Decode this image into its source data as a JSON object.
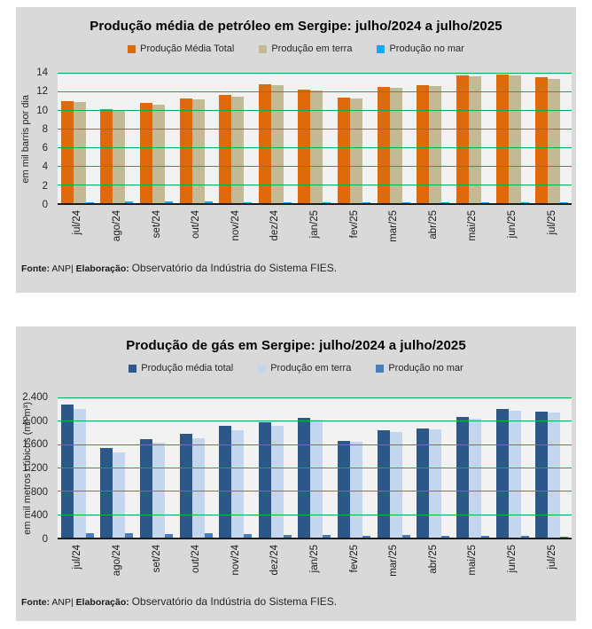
{
  "page": {
    "background": "#ffffff",
    "card_background": "#D9D9D9",
    "plot_background": "#F2F2F2"
  },
  "chart_data": [
    {
      "id": "oil",
      "type": "bar",
      "title": "Produção média de petróleo em Sergipe: julho/2024 a julho/2025",
      "ylabel": "em mil barris por dia",
      "ylim": [
        0,
        14
      ],
      "yticks": [
        14,
        12,
        10,
        8,
        6,
        4,
        2,
        0
      ],
      "ytick_labels": [
        "14",
        "12",
        "10",
        "8",
        "6",
        "4",
        "2",
        "0"
      ],
      "gridline_color": "#00B050",
      "grid": true,
      "legend_position": "top",
      "categories": [
        "jul/24",
        "ago/24",
        "set/24",
        "out/24",
        "nov/24",
        "dez/24",
        "jan/25",
        "fev/25",
        "mar/25",
        "abr/25",
        "mai/25",
        "jun/25",
        "jul/25"
      ],
      "series": [
        {
          "key": "total",
          "name": "Produção Média Total",
          "color": "#DE6A0A",
          "values": [
            10.8,
            10.0,
            10.6,
            11.1,
            11.5,
            12.6,
            12.0,
            11.2,
            12.3,
            12.5,
            13.5,
            13.6,
            13.3
          ]
        },
        {
          "key": "terra",
          "name": "Produção em terra",
          "color": "#C2BA94",
          "values": [
            10.7,
            9.9,
            10.4,
            11.0,
            11.3,
            12.5,
            11.9,
            11.1,
            12.2,
            12.4,
            13.4,
            13.5,
            13.2
          ]
        },
        {
          "key": "mar",
          "name": "Produção no mar",
          "color": "#00B0F0",
          "values": [
            0.1,
            0.2,
            0.2,
            0.2,
            0.1,
            0.05,
            0.05,
            0.05,
            0.05,
            0.1,
            0.05,
            0.05,
            0.05
          ]
        }
      ],
      "source_note": {
        "fonte_label": "Fonte:",
        "fonte_text": "ANP|",
        "elaboracao_label": "Elaboração:",
        "elaboracao_text": "Observatório da Indústria do Sistema FIES."
      }
    },
    {
      "id": "gas",
      "type": "bar",
      "title": "Produção de gás em Sergipe: julho/2024 a julho/2025",
      "ylabel": "em mil metros cúbicos (mil m³)",
      "ylim": [
        0,
        2400
      ],
      "yticks": [
        2400,
        2000,
        1600,
        1200,
        800,
        400,
        0
      ],
      "ytick_labels": [
        "2.400",
        "2.000",
        "1.600",
        "1.200",
        "800",
        "400",
        "0"
      ],
      "gridline_color": "#00B050",
      "grid": true,
      "legend_position": "top",
      "categories": [
        "jul/24",
        "ago/24",
        "set/24",
        "out/24",
        "nov/24",
        "dez/24",
        "jan/25",
        "fev/25",
        "mar/25",
        "abr/25",
        "mai/25",
        "jun/25",
        "jul/25"
      ],
      "series": [
        {
          "key": "total",
          "name": "Produção média total",
          "color": "#2B5789",
          "values": [
            2250,
            1510,
            1670,
            1750,
            1890,
            1950,
            2020,
            1640,
            1810,
            1850,
            2040,
            2180,
            2130
          ]
        },
        {
          "key": "terra",
          "name": "Produção em terra",
          "color": "#C3D6ED",
          "values": [
            2180,
            1440,
            1610,
            1680,
            1820,
            1890,
            1990,
            1620,
            1790,
            1830,
            2010,
            2150,
            2110
          ]
        },
        {
          "key": "mar",
          "name": "Produção no mar",
          "color": "#4A7EBB",
          "values": [
            70,
            70,
            55,
            70,
            60,
            50,
            40,
            25,
            50,
            30,
            30,
            30,
            20
          ]
        }
      ],
      "source_note": {
        "fonte_label": "Fonte:",
        "fonte_text": "ANP|",
        "elaboracao_label": "Elaboração:",
        "elaboracao_text": "Observatório da Indústria do Sistema FIES."
      }
    }
  ]
}
